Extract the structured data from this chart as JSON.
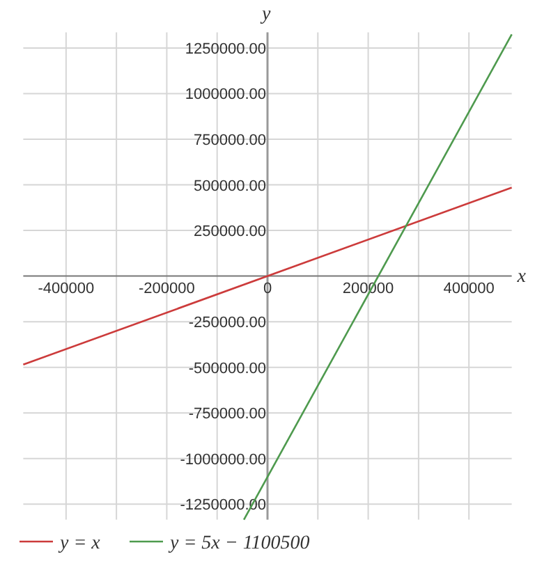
{
  "chart_data": {
    "type": "line",
    "xlabel": "x",
    "ylabel": "y",
    "xlim": [
      -485000,
      485000
    ],
    "ylim": [
      -1335000,
      1335000
    ],
    "xticks": [
      -400000,
      {
        "value": -300000,
        "label": null
      },
      -200000,
      {
        "value": -100000,
        "label": null
      },
      0,
      {
        "value": 100000,
        "label": null
      },
      200000,
      {
        "value": 300000,
        "label": null
      },
      400000
    ],
    "yticks": [
      {
        "value": -1250000,
        "label": "-1250000.00"
      },
      {
        "value": -1000000,
        "label": "-1000000.00"
      },
      {
        "value": -750000,
        "label": "-750000.00"
      },
      {
        "value": -500000,
        "label": "-500000.00"
      },
      {
        "value": -250000,
        "label": "-250000.00"
      },
      {
        "value": 250000,
        "label": "250000.00"
      },
      {
        "value": 500000,
        "label": "500000.00"
      },
      {
        "value": 750000,
        "label": "750000.00"
      },
      {
        "value": 1000000,
        "label": "1000000.00"
      },
      {
        "value": 1250000,
        "label": "1250000.00"
      }
    ],
    "grid": true,
    "legend": "bottom",
    "marker": "none",
    "line_style": "solid",
    "series": [
      {
        "name": "y = x",
        "color": "#cc3b3b",
        "x": [
          -485000,
          485000
        ],
        "values": [
          -485000,
          485000
        ]
      },
      {
        "name": "y = 5x − 1100500",
        "color": "#4e9a4e",
        "x": [
          -46900,
          485000
        ],
        "values": [
          -1335000,
          1324500
        ]
      }
    ]
  }
}
